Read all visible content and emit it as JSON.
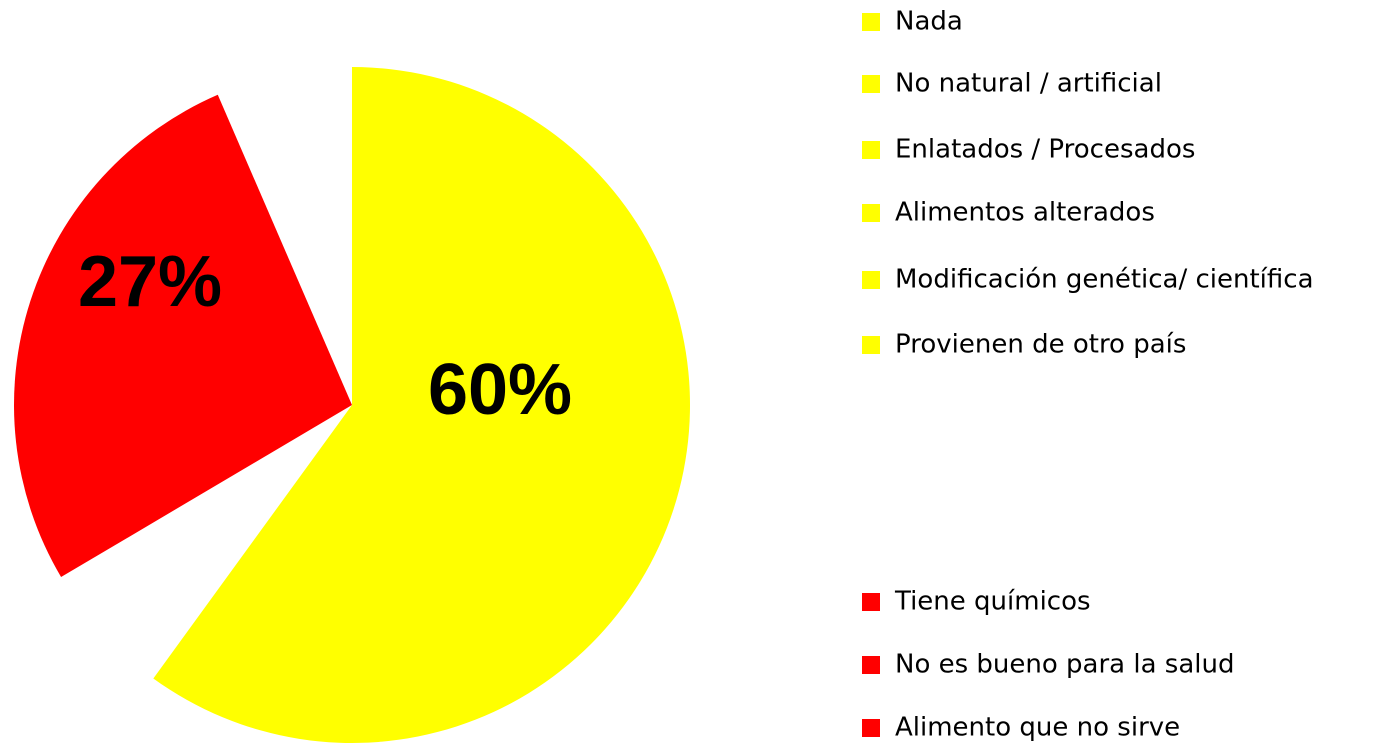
{
  "chart_data": {
    "type": "pie",
    "slices": [
      {
        "value": 60,
        "label": "60%",
        "color": "#ffff00"
      },
      {
        "value": 27,
        "label": "27%",
        "color": "#ff0000"
      }
    ],
    "legend": [
      {
        "name": "Nada",
        "color": "#ffff00"
      },
      {
        "name": "No natural / artificial",
        "color": "#ffff00"
      },
      {
        "name": "Enlatados / Procesados",
        "color": "#ffff00"
      },
      {
        "name": "Alimentos alterados",
        "color": "#ffff00"
      },
      {
        "name": "Modificación genética/ científica",
        "color": "#ffff00"
      },
      {
        "name": "Provienen de otro país",
        "color": "#ffff00"
      },
      {
        "name": "Tiene químicos",
        "color": "#ff0000"
      },
      {
        "name": "No es bueno para la salud",
        "color": "#ff0000"
      },
      {
        "name": "Alimento que no sirve",
        "color": "#ff0000"
      }
    ]
  }
}
